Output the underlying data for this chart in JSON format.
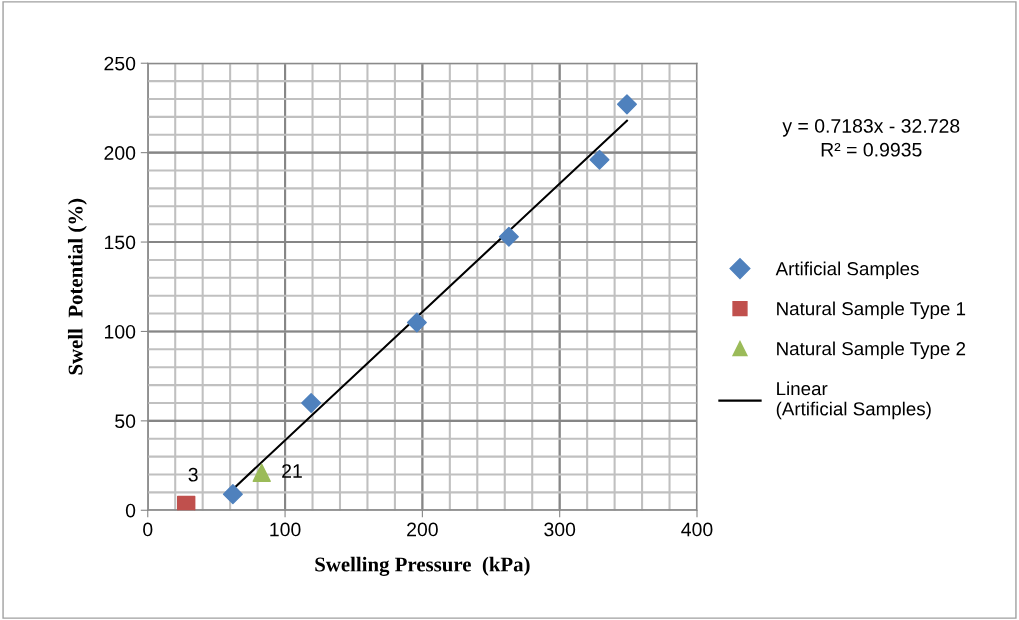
{
  "chart_data": {
    "type": "scatter",
    "xlabel": "Swelling Pressure  (kPa)",
    "ylabel": "Swell  Potential (%)",
    "xlim": [
      0,
      400
    ],
    "ylim": [
      0,
      250
    ],
    "xticks": [
      0,
      100,
      200,
      300,
      400
    ],
    "yticks": [
      0,
      50,
      100,
      150,
      200,
      250
    ],
    "grid": true,
    "legend": "right",
    "series": [
      {
        "name": "Artificial Samples",
        "marker": "diamond",
        "color": "#4f81bd",
        "x": [
          62,
          119,
          196,
          263,
          329,
          349
        ],
        "values": [
          9,
          60,
          105,
          153,
          196,
          227
        ]
      },
      {
        "name": "Natural Sample Type 1",
        "marker": "square",
        "color": "#c0504d",
        "x": [
          28
        ],
        "values": [
          3
        ],
        "value_labels": [
          "3"
        ]
      },
      {
        "name": "Natural Sample Type 2",
        "marker": "triangle",
        "color": "#9bbb59",
        "x": [
          83
        ],
        "values": [
          21
        ],
        "value_labels": [
          "21"
        ]
      },
      {
        "name": "Linear (Artificial Samples)",
        "type": "line",
        "marker": "none",
        "color": "#000000",
        "x": [
          62,
          349
        ],
        "values": [
          11.8,
          217.9
        ]
      }
    ],
    "annotations": [
      "y = 0.7183x - 32.728\nR² = 0.9935"
    ]
  }
}
